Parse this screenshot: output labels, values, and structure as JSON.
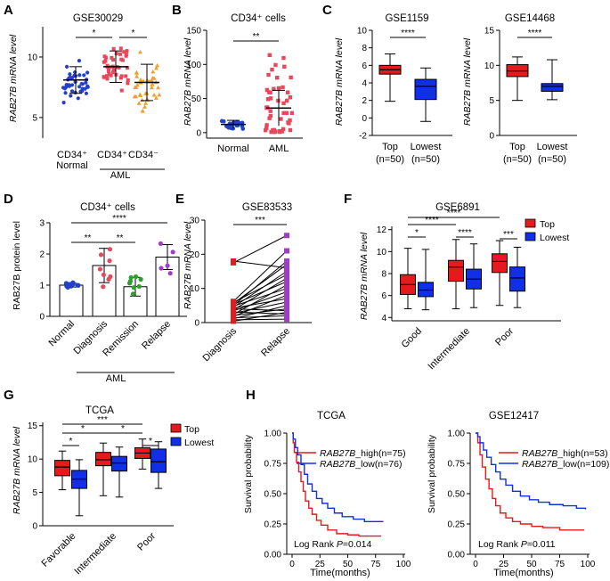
{
  "panels": {
    "A": {
      "letter": "A",
      "title": "GSE30029",
      "ylabel": "RAB27B mRNA level",
      "yticks": [
        "5",
        "10"
      ],
      "groups": [
        {
          "label": "CD34⁺",
          "label2": "Normal",
          "color": "#2440c8",
          "mean": 8.1,
          "sd": 1.1
        },
        {
          "label": "CD34⁺",
          "label2": "",
          "color": "#e8485c",
          "mean": 9.2,
          "sd": 1.3
        },
        {
          "label": "CD34⁻",
          "label2": "",
          "color": "#f0a030",
          "mean": 7.9,
          "sd": 1.5
        }
      ],
      "group_label": "AML",
      "sig": [
        "*",
        "*"
      ]
    },
    "B": {
      "letter": "B",
      "title": "CD34⁺ cells",
      "ylabel": "RAB27B mRNA level",
      "yticks": [
        "0",
        "50",
        "100",
        "150"
      ],
      "groups": [
        {
          "label": "Normal",
          "color": "#2440c8",
          "mean": 12,
          "sd": 6
        },
        {
          "label": "AML",
          "color": "#e8485c",
          "mean": 36,
          "sd": 26
        }
      ],
      "sig": "**"
    },
    "C": {
      "letter": "C",
      "ylabel": "RAB27B mRNA level",
      "charts": [
        {
          "title": "GSE1159",
          "yticks": [
            "-2",
            "0",
            "2",
            "4",
            "6",
            "8",
            "10"
          ],
          "sig": "****",
          "boxes": [
            {
              "label": "Top",
              "n": "(n=50)",
              "color": "#e41a1c",
              "min": 1.9,
              "q1": 5.0,
              "med": 5.5,
              "q3": 6.0,
              "max": 7.3
            },
            {
              "label": "Lowest",
              "n": "(n=50)",
              "color": "#1030e8",
              "min": -0.4,
              "q1": 2.1,
              "med": 3.6,
              "q3": 4.4,
              "max": 5.7
            }
          ]
        },
        {
          "title": "GSE14468",
          "yticks": [
            "0",
            "5",
            "10",
            "15"
          ],
          "sig": "****",
          "boxes": [
            {
              "label": "Top",
              "n": "(n=50)",
              "color": "#e41a1c",
              "min": 5.0,
              "q1": 8.4,
              "med": 9.2,
              "q3": 10.1,
              "max": 11.2
            },
            {
              "label": "Lowest",
              "n": "(n=50)",
              "color": "#1030e8",
              "min": 5.1,
              "q1": 6.3,
              "med": 7.0,
              "q3": 7.4,
              "max": 10.8
            }
          ]
        }
      ]
    },
    "D": {
      "letter": "D",
      "title": "CD34⁺ cells",
      "ylabel": "RAB27B protein level",
      "yticks": [
        "0",
        "1",
        "2",
        "3"
      ],
      "bars": [
        {
          "label": "Normal",
          "value": 1.0,
          "sd": 0.06,
          "color": "#2440c8"
        },
        {
          "label": "Diagnosis",
          "value": 1.63,
          "sd": 0.55,
          "color": "#e8485c"
        },
        {
          "label": "Remission",
          "value": 0.95,
          "sd": 0.3,
          "color": "#2ca02c"
        },
        {
          "label": "Relapse",
          "value": 1.9,
          "sd": 0.4,
          "color": "#a03cc8"
        }
      ],
      "group_label": "AML",
      "sig": [
        {
          "a": 0,
          "b": 1,
          "label": "**"
        },
        {
          "a": 1,
          "b": 2,
          "label": "**"
        },
        {
          "a": 0,
          "b": 3,
          "label": "****"
        }
      ]
    },
    "E": {
      "letter": "E",
      "title": "GSE83533",
      "ylabel": "RAB27B mRNA level",
      "yticks": [
        "0",
        "10",
        "20",
        "30"
      ],
      "xlabels": [
        "Diagnosis",
        "Relapse"
      ],
      "sig": "***",
      "pairs": [
        [
          0.4,
          3
        ],
        [
          0.8,
          1
        ],
        [
          1.1,
          5
        ],
        [
          1.4,
          2
        ],
        [
          1.8,
          8
        ],
        [
          2.1,
          4
        ],
        [
          2.4,
          11
        ],
        [
          2.7,
          6
        ],
        [
          3.1,
          2.5
        ],
        [
          3.4,
          9
        ],
        [
          3.7,
          13
        ],
        [
          4.0,
          3.5
        ],
        [
          4.2,
          7
        ],
        [
          4.5,
          15
        ],
        [
          4.8,
          10
        ],
        [
          5.0,
          18
        ],
        [
          5.3,
          12
        ],
        [
          5.6,
          17
        ],
        [
          5.9,
          14
        ],
        [
          6.2,
          21
        ],
        [
          17.5,
          25.5
        ],
        [
          18,
          16
        ]
      ],
      "colors": {
        "dx": "#e41a1c",
        "rel": "#a03cc8"
      }
    },
    "F": {
      "letter": "F",
      "title": "GSE6891",
      "ylabel": "RAB27B mRNA level",
      "yticks": [
        "4",
        "6",
        "8",
        "10",
        "12"
      ],
      "legend": [
        {
          "label": "Top",
          "color": "#e41a1c"
        },
        {
          "label": "Lowest",
          "color": "#1030e8"
        }
      ],
      "categories": [
        "Good",
        "Intermediate",
        "Poor"
      ],
      "boxes": [
        {
          "min": 4.8,
          "q1": 6.1,
          "med": 7.0,
          "q3": 7.9,
          "max": 10.3,
          "color": "#e41a1c"
        },
        {
          "min": 4.7,
          "q1": 5.9,
          "med": 6.5,
          "q3": 7.2,
          "max": 10.2,
          "color": "#1030e8"
        },
        {
          "min": 4.8,
          "q1": 7.3,
          "med": 8.6,
          "q3": 9.2,
          "max": 11.1,
          "color": "#e41a1c"
        },
        {
          "min": 4.9,
          "q1": 6.6,
          "med": 7.5,
          "q3": 8.4,
          "max": 10.7,
          "color": "#1030e8"
        },
        {
          "min": 5.1,
          "q1": 8.1,
          "med": 9.1,
          "q3": 9.8,
          "max": 11.0,
          "color": "#e41a1c"
        },
        {
          "min": 4.9,
          "q1": 6.4,
          "med": 7.6,
          "q3": 8.6,
          "max": 10.4,
          "color": "#1030e8"
        }
      ],
      "sig": [
        {
          "a": 0,
          "b": 1,
          "label": "*"
        },
        {
          "a": 2,
          "b": 3,
          "label": "****"
        },
        {
          "a": 4,
          "b": 5,
          "label": "***"
        },
        {
          "a": 0,
          "b": 2,
          "label": "****"
        },
        {
          "a": 0,
          "b": 4,
          "label": "****"
        }
      ]
    },
    "G": {
      "letter": "G",
      "title": "TCGA",
      "ylabel": "RAB27B mRNA level",
      "yticks": [
        "0",
        "5",
        "10",
        "15"
      ],
      "legend": [
        {
          "label": "Top",
          "color": "#e41a1c"
        },
        {
          "label": "Lowest",
          "color": "#1030e8"
        }
      ],
      "categories": [
        "Favorable",
        "Intermediate",
        "Poor"
      ],
      "boxes": [
        {
          "min": 5.4,
          "q1": 7.5,
          "med": 8.8,
          "q3": 9.8,
          "max": 11.2,
          "color": "#e41a1c"
        },
        {
          "min": 1.5,
          "q1": 5.6,
          "med": 7.0,
          "q3": 8.3,
          "max": 9.9,
          "color": "#1030e8"
        },
        {
          "min": 4.5,
          "q1": 9.0,
          "med": 9.9,
          "q3": 11.0,
          "max": 12.4,
          "color": "#e41a1c"
        },
        {
          "min": 4.3,
          "q1": 8.2,
          "med": 9.4,
          "q3": 10.4,
          "max": 11.8,
          "color": "#1030e8"
        },
        {
          "min": 8.5,
          "q1": 10.1,
          "med": 10.9,
          "q3": 11.7,
          "max": 13.0,
          "color": "#e41a1c"
        },
        {
          "min": 5.6,
          "q1": 8.0,
          "med": 9.6,
          "q3": 11.5,
          "max": 12.6,
          "color": "#1030e8"
        }
      ],
      "sig": [
        {
          "a": 0,
          "b": 1,
          "label": "*"
        },
        {
          "a": 4,
          "b": 5,
          "label": "*"
        },
        {
          "a": 0,
          "b": 2,
          "label": "*"
        },
        {
          "a": 2,
          "b": 4,
          "label": "*"
        },
        {
          "a": 0,
          "b": 4,
          "label": "***"
        }
      ]
    },
    "H": {
      "letter": "H",
      "charts": [
        {
          "title": "TCGA",
          "ylabel": "Survival probability",
          "xlabel": "Time(months)",
          "yticks": [
            "0.00",
            "0.25",
            "0.50",
            "0.75",
            "1.00"
          ],
          "xticks": [
            "0",
            "25",
            "50",
            "75",
            "100"
          ],
          "legend": [
            {
              "gene": "RAB27B",
              "suffix": "_high(n=75)",
              "color": "#e41a1c"
            },
            {
              "gene": "RAB27B",
              "suffix": "_low(n=76)",
              "color": "#1030e8"
            }
          ],
          "stat_prefix": "Log Rank ",
          "stat_p": "P",
          "stat_value": "=0.014",
          "curves": [
            {
              "color": "#e41a1c",
              "points": [
                [
                  0,
                  1
                ],
                [
                  1,
                  0.92
                ],
                [
                  2,
                  0.84
                ],
                [
                  4,
                  0.76
                ],
                [
                  6,
                  0.68
                ],
                [
                  8,
                  0.6
                ],
                [
                  10,
                  0.52
                ],
                [
                  12,
                  0.44
                ],
                [
                  15,
                  0.38
                ],
                [
                  18,
                  0.33
                ],
                [
                  22,
                  0.28
                ],
                [
                  26,
                  0.24
                ],
                [
                  32,
                  0.2
                ],
                [
                  40,
                  0.17
                ],
                [
                  50,
                  0.16
                ],
                [
                  60,
                  0.15
                ],
                [
                  80,
                  0.15
                ]
              ]
            },
            {
              "color": "#1030e8",
              "points": [
                [
                  0,
                  1
                ],
                [
                  1,
                  0.95
                ],
                [
                  3,
                  0.88
                ],
                [
                  5,
                  0.82
                ],
                [
                  8,
                  0.74
                ],
                [
                  11,
                  0.66
                ],
                [
                  14,
                  0.58
                ],
                [
                  18,
                  0.52
                ],
                [
                  22,
                  0.46
                ],
                [
                  27,
                  0.42
                ],
                [
                  32,
                  0.38
                ],
                [
                  38,
                  0.34
                ],
                [
                  45,
                  0.31
                ],
                [
                  55,
                  0.29
                ],
                [
                  65,
                  0.27
                ],
                [
                  82,
                  0.27
                ]
              ]
            }
          ]
        },
        {
          "title": "GSE12417",
          "ylabel": "Survival probability",
          "xlabel": "Time(months)",
          "yticks": [
            "0.00",
            "0.25",
            "0.50",
            "0.75",
            "1.00"
          ],
          "xticks": [
            "0",
            "25",
            "50",
            "75",
            "100"
          ],
          "legend": [
            {
              "gene": "RAB27B",
              "suffix": "_high(n=53)",
              "color": "#e41a1c"
            },
            {
              "gene": "RAB27B",
              "suffix": "_low(n=109)",
              "color": "#1030e8"
            }
          ],
          "stat_prefix": "Log Rank ",
          "stat_p": "P",
          "stat_value": "=0.011",
          "curves": [
            {
              "color": "#e41a1c",
              "points": [
                [
                  0,
                  1
                ],
                [
                  2,
                  0.92
                ],
                [
                  4,
                  0.82
                ],
                [
                  6,
                  0.72
                ],
                [
                  9,
                  0.62
                ],
                [
                  12,
                  0.54
                ],
                [
                  15,
                  0.46
                ],
                [
                  18,
                  0.4
                ],
                [
                  22,
                  0.34
                ],
                [
                  27,
                  0.3
                ],
                [
                  33,
                  0.27
                ],
                [
                  40,
                  0.25
                ],
                [
                  50,
                  0.23
                ],
                [
                  60,
                  0.22
                ],
                [
                  75,
                  0.2
                ],
                [
                  97,
                  0.2
                ]
              ]
            },
            {
              "color": "#1030e8",
              "points": [
                [
                  0,
                  1
                ],
                [
                  2,
                  0.97
                ],
                [
                  4,
                  0.92
                ],
                [
                  7,
                  0.86
                ],
                [
                  10,
                  0.8
                ],
                [
                  14,
                  0.74
                ],
                [
                  18,
                  0.68
                ],
                [
                  22,
                  0.62
                ],
                [
                  27,
                  0.57
                ],
                [
                  33,
                  0.52
                ],
                [
                  40,
                  0.48
                ],
                [
                  48,
                  0.45
                ],
                [
                  56,
                  0.43
                ],
                [
                  66,
                  0.41
                ],
                [
                  78,
                  0.4
                ],
                [
                  90,
                  0.38
                ],
                [
                  98,
                  0.37
                ]
              ]
            }
          ]
        }
      ]
    }
  }
}
